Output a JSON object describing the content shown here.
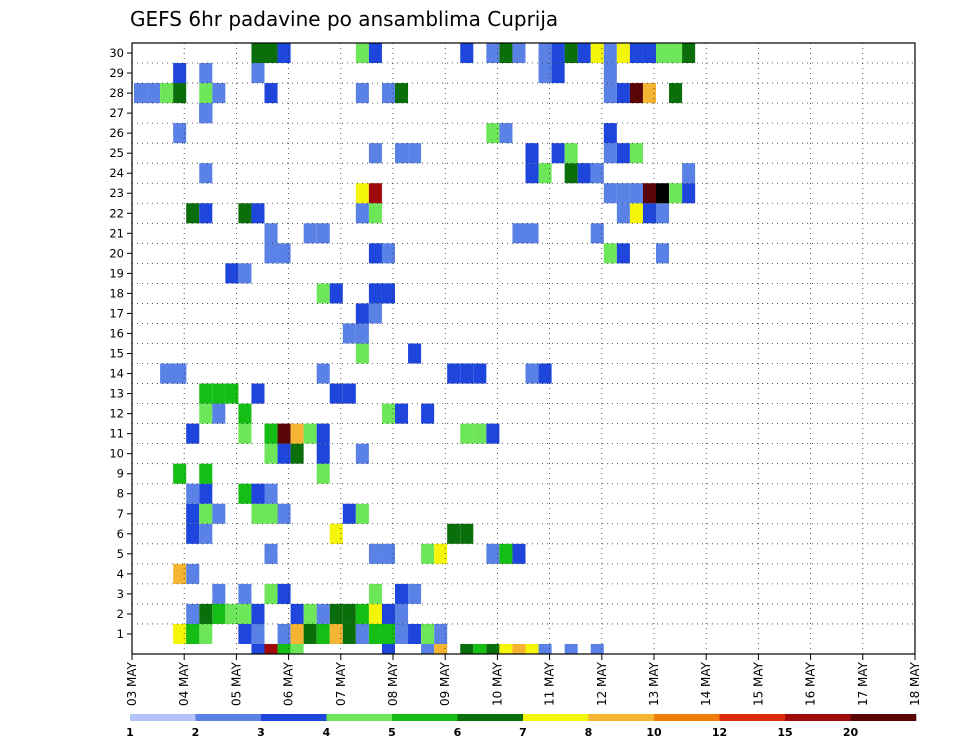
{
  "chart_data": {
    "type": "heatmap",
    "title": "GEFS 6hr padavine po ansamblima Cuprija",
    "x_labels": [
      "03 MAY",
      "04 MAY",
      "05 MAY",
      "06 MAY",
      "07 MAY",
      "08 MAY",
      "09 MAY",
      "10 MAY",
      "11 MAY",
      "12 MAY",
      "13 MAY",
      "14 MAY",
      "15 MAY",
      "16 MAY",
      "17 MAY",
      "18 MAY"
    ],
    "y_labels": [
      "1",
      "2",
      "3",
      "4",
      "5",
      "6",
      "7",
      "8",
      "9",
      "10",
      "11",
      "12",
      "13",
      "14",
      "15",
      "16",
      "17",
      "18",
      "19",
      "20",
      "21",
      "22",
      "23",
      "24",
      "25",
      "26",
      "27",
      "28",
      "29",
      "30"
    ],
    "y_range": [
      0,
      30
    ],
    "grid": true,
    "colorbar": {
      "levels": [
        "1",
        "2",
        "3",
        "4",
        "5",
        "6",
        "7",
        "8",
        "10",
        "12",
        "15",
        "20"
      ],
      "colors": [
        "#b4c3fa",
        "#5a82e6",
        "#1e46dc",
        "#6ee65a",
        "#14be14",
        "#0a6e0a",
        "#f5f50a",
        "#f5b432",
        "#f07d0a",
        "#dc2d0a",
        "#a00a0a",
        "#5a0505"
      ]
    },
    "cells": [
      [
        0,
        4,
        5
      ],
      [
        0,
        3,
        6
      ],
      [
        0,
        4,
        4
      ],
      [
        0,
        5,
        3
      ],
      [
        0,
        8,
        2
      ],
      [
        0,
        9,
        1
      ],
      [
        0,
        11,
        1
      ],
      [
        0,
        12,
        7
      ],
      [
        0,
        13,
        5
      ],
      [
        0,
        14,
        4
      ],
      [
        0,
        15,
        7
      ],
      [
        0,
        16,
        5
      ],
      [
        0,
        17,
        1
      ],
      [
        0,
        18,
        4
      ],
      [
        0,
        19,
        4
      ],
      [
        0,
        20,
        1
      ],
      [
        0,
        21,
        2
      ],
      [
        0,
        22,
        3
      ],
      [
        0,
        23,
        1
      ],
      [
        1,
        12,
        2
      ],
      [
        1,
        13,
        3
      ],
      [
        1,
        14,
        1
      ],
      [
        1,
        15,
        5
      ],
      [
        1,
        16,
        5
      ],
      [
        1,
        17,
        4
      ],
      [
        1,
        18,
        6
      ],
      [
        1,
        19,
        2
      ],
      [
        1,
        20,
        1
      ],
      [
        2,
        10,
        3
      ],
      [
        2,
        11,
        2
      ],
      [
        2,
        8,
        1
      ],
      [
        2,
        6,
        1
      ],
      [
        2,
        18,
        3
      ],
      [
        2,
        20,
        2
      ],
      [
        2,
        21,
        1
      ],
      [
        1,
        4,
        1
      ],
      [
        1,
        5,
        5
      ],
      [
        1,
        6,
        4
      ],
      [
        1,
        7,
        3
      ],
      [
        1,
        8,
        3
      ],
      [
        1,
        9,
        2
      ],
      [
        3,
        3,
        7
      ],
      [
        3,
        4,
        1
      ],
      [
        13,
        14,
        1
      ],
      [
        13,
        3,
        2
      ],
      [
        13,
        2,
        1
      ],
      [
        4,
        10,
        1
      ],
      [
        4,
        18,
        1
      ],
      [
        4,
        19,
        1
      ],
      [
        4,
        22,
        3
      ],
      [
        4,
        23,
        6
      ],
      [
        4,
        27,
        1
      ],
      [
        4,
        28,
        4
      ],
      [
        4,
        29,
        2
      ],
      [
        5,
        4,
        2
      ],
      [
        5,
        5,
        1
      ],
      [
        5,
        15,
        6
      ],
      [
        5,
        24,
        5
      ],
      [
        5,
        25,
        5
      ],
      [
        6,
        4,
        2
      ],
      [
        6,
        5,
        3
      ],
      [
        6,
        6,
        1
      ],
      [
        6,
        11,
        1
      ],
      [
        6,
        10,
        3
      ],
      [
        6,
        9,
        3
      ],
      [
        6,
        16,
        2
      ],
      [
        6,
        17,
        3
      ],
      [
        7,
        4,
        1
      ],
      [
        7,
        5,
        2
      ],
      [
        7,
        8,
        4
      ],
      [
        7,
        9,
        2
      ],
      [
        7,
        10,
        1
      ],
      [
        8,
        3,
        4
      ],
      [
        8,
        5,
        4
      ],
      [
        8,
        14,
        3
      ],
      [
        9,
        10,
        3
      ],
      [
        9,
        11,
        2
      ],
      [
        9,
        12,
        5
      ],
      [
        9,
        14,
        2
      ],
      [
        9,
        17,
        1
      ],
      [
        10,
        4,
        2
      ],
      [
        10,
        8,
        3
      ],
      [
        10,
        10,
        4
      ],
      [
        10,
        11,
        11
      ],
      [
        10,
        12,
        7
      ],
      [
        10,
        13,
        3
      ],
      [
        10,
        14,
        2
      ],
      [
        10,
        25,
        3
      ],
      [
        10,
        26,
        3
      ],
      [
        10,
        27,
        2
      ],
      [
        11,
        5,
        3
      ],
      [
        11,
        6,
        1
      ],
      [
        11,
        8,
        4
      ],
      [
        11,
        19,
        3
      ],
      [
        11,
        20,
        2
      ],
      [
        11,
        22,
        2
      ],
      [
        12,
        5,
        4
      ],
      [
        12,
        6,
        4
      ],
      [
        12,
        7,
        4
      ],
      [
        12,
        9,
        2
      ],
      [
        12,
        15,
        2
      ],
      [
        12,
        16,
        2
      ],
      [
        13,
        3,
        1
      ],
      [
        13,
        24,
        2
      ],
      [
        13,
        25,
        2
      ],
      [
        13,
        26,
        2
      ],
      [
        13,
        30,
        1
      ],
      [
        13,
        31,
        2
      ],
      [
        14,
        17,
        3
      ],
      [
        14,
        21,
        2
      ],
      [
        15,
        16,
        1
      ],
      [
        15,
        17,
        1
      ],
      [
        16,
        17,
        2
      ],
      [
        16,
        18,
        1
      ],
      [
        17,
        14,
        3
      ],
      [
        17,
        15,
        2
      ],
      [
        17,
        18,
        2
      ],
      [
        17,
        19,
        2
      ],
      [
        18,
        7,
        2
      ],
      [
        18,
        8,
        1
      ],
      [
        19,
        10,
        1
      ],
      [
        19,
        11,
        1
      ],
      [
        19,
        18,
        2
      ],
      [
        19,
        19,
        1
      ],
      [
        19,
        36,
        3
      ],
      [
        19,
        37,
        2
      ],
      [
        19,
        40,
        1
      ],
      [
        20,
        10,
        1
      ],
      [
        20,
        13,
        1
      ],
      [
        20,
        14,
        1
      ],
      [
        20,
        29,
        1
      ],
      [
        20,
        30,
        1
      ],
      [
        20,
        35,
        1
      ],
      [
        21,
        4,
        5
      ],
      [
        21,
        5,
        2
      ],
      [
        21,
        8,
        5
      ],
      [
        21,
        9,
        2
      ],
      [
        21,
        17,
        1
      ],
      [
        21,
        18,
        3
      ],
      [
        21,
        37,
        1
      ],
      [
        21,
        38,
        6
      ],
      [
        21,
        39,
        2
      ],
      [
        21,
        40,
        1
      ],
      [
        22,
        17,
        6
      ],
      [
        22,
        18,
        10
      ],
      [
        22,
        36,
        1
      ],
      [
        22,
        37,
        1
      ],
      [
        22,
        38,
        1
      ],
      [
        22,
        39,
        11
      ],
      [
        22,
        40,
        12
      ],
      [
        22,
        41,
        3
      ],
      [
        22,
        42,
        2
      ],
      [
        23,
        5,
        1
      ],
      [
        23,
        30,
        2
      ],
      [
        23,
        31,
        3
      ],
      [
        23,
        33,
        5
      ],
      [
        23,
        34,
        2
      ],
      [
        23,
        35,
        1
      ],
      [
        23,
        42,
        1
      ],
      [
        24,
        18,
        1
      ],
      [
        24,
        20,
        1
      ],
      [
        24,
        21,
        1
      ],
      [
        24,
        30,
        2
      ],
      [
        24,
        32,
        2
      ],
      [
        24,
        33,
        3
      ],
      [
        24,
        36,
        1
      ],
      [
        24,
        37,
        2
      ],
      [
        24,
        38,
        3
      ],
      [
        25,
        3,
        1
      ],
      [
        25,
        27,
        3
      ],
      [
        25,
        28,
        1
      ],
      [
        25,
        36,
        2
      ],
      [
        26,
        5,
        2
      ],
      [
        26,
        5,
        1
      ],
      [
        27,
        0,
        1
      ],
      [
        27,
        1,
        1
      ],
      [
        27,
        2,
        3
      ],
      [
        27,
        3,
        5
      ],
      [
        27,
        5,
        3
      ],
      [
        27,
        6,
        1
      ],
      [
        27,
        10,
        2
      ],
      [
        27,
        17,
        1
      ],
      [
        27,
        19,
        1
      ],
      [
        27,
        20,
        5
      ],
      [
        27,
        36,
        1
      ],
      [
        27,
        37,
        2
      ],
      [
        27,
        38,
        11
      ],
      [
        27,
        39,
        7
      ],
      [
        27,
        41,
        5
      ],
      [
        28,
        3,
        2
      ],
      [
        28,
        5,
        1
      ],
      [
        28,
        9,
        1
      ],
      [
        28,
        31,
        1
      ],
      [
        28,
        32,
        2
      ],
      [
        28,
        36,
        1
      ],
      [
        29,
        9,
        5
      ],
      [
        29,
        10,
        5
      ],
      [
        29,
        11,
        2
      ],
      [
        29,
        17,
        3
      ],
      [
        29,
        18,
        2
      ],
      [
        29,
        25,
        2
      ],
      [
        29,
        27,
        1
      ],
      [
        29,
        28,
        5
      ],
      [
        29,
        29,
        1
      ],
      [
        29,
        31,
        1
      ],
      [
        29,
        32,
        2
      ],
      [
        29,
        33,
        5
      ],
      [
        29,
        34,
        2
      ],
      [
        29,
        35,
        6
      ],
      [
        29,
        36,
        1
      ],
      [
        29,
        37,
        6
      ],
      [
        29,
        38,
        2
      ],
      [
        29,
        39,
        2
      ],
      [
        29,
        40,
        3
      ],
      [
        29,
        41,
        3
      ],
      [
        29,
        42,
        5
      ],
      [
        -1,
        9,
        2
      ],
      [
        -1,
        10,
        10
      ],
      [
        -1,
        11,
        4
      ],
      [
        -1,
        12,
        3
      ],
      [
        -1,
        19,
        2
      ],
      [
        -1,
        22,
        1
      ],
      [
        -1,
        23,
        7
      ],
      [
        -1,
        25,
        5
      ],
      [
        -1,
        26,
        4
      ],
      [
        -1,
        27,
        5
      ],
      [
        -1,
        28,
        6
      ],
      [
        -1,
        29,
        7
      ],
      [
        -1,
        30,
        6
      ],
      [
        -1,
        31,
        1
      ],
      [
        -1,
        33,
        1
      ],
      [
        -1,
        35,
        1
      ]
    ]
  }
}
